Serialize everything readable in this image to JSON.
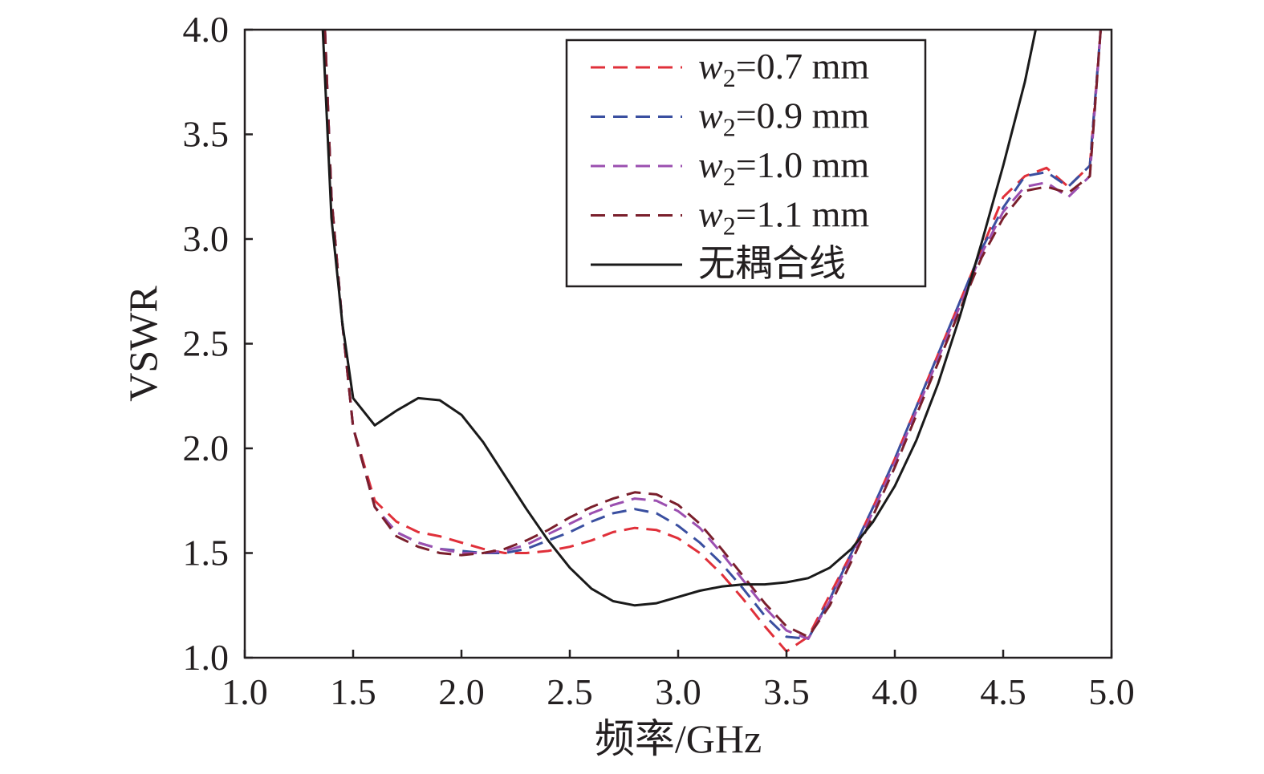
{
  "chart_data": {
    "type": "line",
    "title": "",
    "xlabel": "频率/GHz",
    "ylabel": "VSWR",
    "xlim": [
      1.0,
      5.0
    ],
    "ylim": [
      1.0,
      4.0
    ],
    "xticks": [
      "1.0",
      "1.5",
      "2.0",
      "2.5",
      "3.0",
      "3.5",
      "4.0",
      "4.5",
      "5.0"
    ],
    "yticks": [
      "1.0",
      "1.5",
      "2.0",
      "2.5",
      "3.0",
      "3.5",
      "4.0"
    ],
    "grid": false,
    "legend_position": "top-right",
    "series": [
      {
        "name": "w2=0.7 mm",
        "legend_var": "w",
        "legend_sub": "2",
        "legend_rest": "=0.7 mm",
        "color": "#e0303a",
        "dashed": true,
        "x": [
          1.37,
          1.4,
          1.45,
          1.5,
          1.6,
          1.7,
          1.8,
          1.9,
          2.0,
          2.1,
          2.2,
          2.3,
          2.4,
          2.5,
          2.6,
          2.7,
          2.8,
          2.9,
          3.0,
          3.1,
          3.2,
          3.3,
          3.4,
          3.5,
          3.6,
          3.7,
          3.8,
          3.9,
          4.0,
          4.1,
          4.2,
          4.3,
          4.4,
          4.5,
          4.6,
          4.7,
          4.8,
          4.9,
          4.95
        ],
        "y": [
          4.0,
          3.2,
          2.6,
          2.1,
          1.75,
          1.65,
          1.6,
          1.58,
          1.55,
          1.52,
          1.5,
          1.5,
          1.51,
          1.53,
          1.56,
          1.6,
          1.62,
          1.61,
          1.57,
          1.5,
          1.4,
          1.28,
          1.15,
          1.03,
          1.1,
          1.3,
          1.5,
          1.72,
          1.95,
          2.2,
          2.45,
          2.7,
          2.95,
          3.2,
          3.3,
          3.34,
          3.25,
          3.35,
          4.0
        ]
      },
      {
        "name": "w2=0.9 mm",
        "legend_var": "w",
        "legend_sub": "2",
        "legend_rest": "=0.9 mm",
        "color": "#3a4fa0",
        "dashed": true,
        "x": [
          1.37,
          1.4,
          1.45,
          1.5,
          1.6,
          1.7,
          1.8,
          1.9,
          2.0,
          2.1,
          2.2,
          2.3,
          2.4,
          2.5,
          2.6,
          2.7,
          2.8,
          2.9,
          3.0,
          3.1,
          3.2,
          3.3,
          3.4,
          3.5,
          3.6,
          3.7,
          3.8,
          3.9,
          4.0,
          4.1,
          4.2,
          4.3,
          4.4,
          4.5,
          4.6,
          4.7,
          4.8,
          4.9,
          4.95
        ],
        "y": [
          4.0,
          3.2,
          2.6,
          2.1,
          1.72,
          1.6,
          1.55,
          1.52,
          1.51,
          1.5,
          1.5,
          1.52,
          1.56,
          1.6,
          1.65,
          1.69,
          1.71,
          1.69,
          1.63,
          1.55,
          1.45,
          1.33,
          1.2,
          1.1,
          1.09,
          1.28,
          1.5,
          1.72,
          1.95,
          2.2,
          2.45,
          2.7,
          2.95,
          3.15,
          3.3,
          3.32,
          3.25,
          3.35,
          4.0
        ]
      },
      {
        "name": "w2=1.0 mm",
        "legend_var": "w",
        "legend_sub": "2",
        "legend_rest": "=1.0 mm",
        "color": "#9b4fb0",
        "dashed": true,
        "x": [
          1.37,
          1.4,
          1.45,
          1.5,
          1.6,
          1.7,
          1.8,
          1.9,
          2.0,
          2.1,
          2.2,
          2.3,
          2.4,
          2.5,
          2.6,
          2.7,
          2.8,
          2.9,
          3.0,
          3.1,
          3.2,
          3.3,
          3.4,
          3.5,
          3.6,
          3.7,
          3.8,
          3.9,
          4.0,
          4.1,
          4.2,
          4.3,
          4.4,
          4.5,
          4.6,
          4.7,
          4.8,
          4.9,
          4.95
        ],
        "y": [
          4.0,
          3.2,
          2.6,
          2.1,
          1.72,
          1.6,
          1.55,
          1.52,
          1.5,
          1.5,
          1.51,
          1.54,
          1.59,
          1.64,
          1.69,
          1.73,
          1.76,
          1.75,
          1.7,
          1.62,
          1.5,
          1.37,
          1.24,
          1.13,
          1.09,
          1.27,
          1.48,
          1.7,
          1.93,
          2.18,
          2.43,
          2.68,
          2.93,
          3.13,
          3.25,
          3.27,
          3.2,
          3.3,
          4.0
        ]
      },
      {
        "name": "w2=1.1 mm",
        "legend_var": "w",
        "legend_sub": "2",
        "legend_rest": "=1.1 mm",
        "color": "#7a1f2c",
        "dashed": true,
        "x": [
          1.37,
          1.4,
          1.45,
          1.5,
          1.6,
          1.7,
          1.8,
          1.9,
          2.0,
          2.1,
          2.2,
          2.3,
          2.4,
          2.5,
          2.6,
          2.7,
          2.8,
          2.9,
          3.0,
          3.1,
          3.2,
          3.3,
          3.4,
          3.5,
          3.6,
          3.7,
          3.8,
          3.9,
          4.0,
          4.1,
          4.2,
          4.3,
          4.4,
          4.5,
          4.6,
          4.7,
          4.8,
          4.9,
          4.95
        ],
        "y": [
          4.0,
          3.2,
          2.6,
          2.1,
          1.72,
          1.58,
          1.53,
          1.5,
          1.49,
          1.5,
          1.52,
          1.56,
          1.61,
          1.67,
          1.72,
          1.76,
          1.79,
          1.78,
          1.73,
          1.64,
          1.52,
          1.39,
          1.26,
          1.15,
          1.1,
          1.25,
          1.46,
          1.68,
          1.91,
          2.16,
          2.41,
          2.66,
          2.91,
          3.1,
          3.23,
          3.25,
          3.22,
          3.3,
          4.0
        ]
      },
      {
        "name": "无耦合线",
        "legend_var": "",
        "legend_sub": "",
        "legend_rest": "无耦合线",
        "color": "#1a1a1a",
        "dashed": false,
        "x": [
          1.36,
          1.4,
          1.45,
          1.5,
          1.6,
          1.7,
          1.8,
          1.9,
          2.0,
          2.1,
          2.2,
          2.3,
          2.4,
          2.5,
          2.6,
          2.7,
          2.8,
          2.9,
          3.0,
          3.1,
          3.2,
          3.3,
          3.4,
          3.5,
          3.6,
          3.7,
          3.8,
          3.9,
          4.0,
          4.1,
          4.2,
          4.3,
          4.4,
          4.5,
          4.6,
          4.65
        ],
        "y": [
          4.0,
          3.1,
          2.6,
          2.24,
          2.11,
          2.18,
          2.24,
          2.23,
          2.16,
          2.03,
          1.87,
          1.71,
          1.56,
          1.43,
          1.33,
          1.27,
          1.25,
          1.26,
          1.29,
          1.32,
          1.34,
          1.35,
          1.35,
          1.36,
          1.38,
          1.43,
          1.52,
          1.65,
          1.82,
          2.04,
          2.31,
          2.63,
          2.98,
          3.35,
          3.75,
          4.0
        ]
      }
    ]
  }
}
